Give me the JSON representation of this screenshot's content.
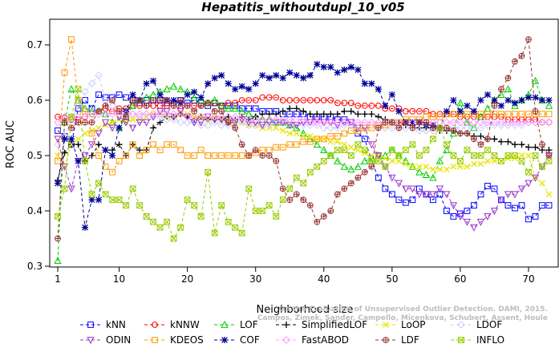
{
  "chart_data": {
    "type": "line",
    "title": "Hepatitis_withoutdupl_10_v05",
    "xlabel": "Neighborhood size",
    "ylabel": "ROC AUC",
    "xlim": [
      0,
      73
    ],
    "ylim": [
      0.3,
      0.75
    ],
    "xticks": [
      1,
      10,
      20,
      30,
      40,
      50,
      60,
      70
    ],
    "yticks": [
      0.3,
      0.4,
      0.5,
      0.6,
      0.7
    ],
    "grid": false,
    "legend_position": "bottom",
    "x": [
      1,
      2,
      3,
      4,
      5,
      6,
      7,
      8,
      9,
      10,
      11,
      12,
      13,
      14,
      15,
      16,
      17,
      18,
      19,
      20,
      21,
      22,
      23,
      24,
      25,
      26,
      27,
      28,
      29,
      30,
      31,
      32,
      33,
      34,
      35,
      36,
      37,
      38,
      39,
      40,
      41,
      42,
      43,
      44,
      45,
      46,
      47,
      48,
      49,
      50,
      51,
      52,
      53,
      54,
      55,
      56,
      57,
      58,
      59,
      60,
      61,
      62,
      63,
      64,
      65,
      66,
      67,
      68,
      69,
      70,
      71,
      72,
      73
    ],
    "series": [
      {
        "name": "kNN",
        "color": "#0000ff",
        "marker": "square",
        "values": [
          0.545,
          0.535,
          0.52,
          0.585,
          0.6,
          0.585,
          0.61,
          0.605,
          0.605,
          0.61,
          0.605,
          0.6,
          0.595,
          0.6,
          0.6,
          0.6,
          0.595,
          0.595,
          0.6,
          0.595,
          0.6,
          0.595,
          0.59,
          0.595,
          0.59,
          0.59,
          0.59,
          0.585,
          0.585,
          0.585,
          0.58,
          0.58,
          0.58,
          0.575,
          0.575,
          0.575,
          0.575,
          0.57,
          0.57,
          0.57,
          0.57,
          0.565,
          0.565,
          0.56,
          0.54,
          0.53,
          0.49,
          0.46,
          0.44,
          0.43,
          0.42,
          0.415,
          0.42,
          0.44,
          0.43,
          0.42,
          0.43,
          0.4,
          0.39,
          0.395,
          0.4,
          0.41,
          0.43,
          0.445,
          0.44,
          0.42,
          0.41,
          0.405,
          0.41,
          0.385,
          0.39,
          0.41,
          0.41
        ]
      },
      {
        "name": "kNNW",
        "color": "#ff0000",
        "marker": "circle",
        "values": [
          0.57,
          0.568,
          0.565,
          0.565,
          0.57,
          0.575,
          0.58,
          0.585,
          0.58,
          0.585,
          0.585,
          0.59,
          0.59,
          0.59,
          0.59,
          0.59,
          0.59,
          0.59,
          0.585,
          0.59,
          0.59,
          0.59,
          0.595,
          0.595,
          0.59,
          0.595,
          0.595,
          0.6,
          0.6,
          0.6,
          0.605,
          0.605,
          0.605,
          0.6,
          0.6,
          0.6,
          0.6,
          0.6,
          0.6,
          0.6,
          0.6,
          0.595,
          0.595,
          0.595,
          0.59,
          0.59,
          0.59,
          0.59,
          0.585,
          0.585,
          0.585,
          0.58,
          0.58,
          0.58,
          0.58,
          0.575,
          0.575,
          0.575,
          0.575,
          0.57,
          0.57,
          0.57,
          0.57,
          0.57,
          0.57,
          0.57,
          0.565,
          0.565,
          0.565,
          0.565,
          0.565,
          0.56,
          0.56
        ]
      },
      {
        "name": "LOF",
        "color": "#00cc00",
        "marker": "triangle-up",
        "values": [
          0.31,
          0.56,
          0.62,
          0.6,
          0.585,
          0.58,
          0.58,
          0.575,
          0.56,
          0.55,
          0.57,
          0.59,
          0.6,
          0.605,
          0.61,
          0.615,
          0.62,
          0.625,
          0.62,
          0.615,
          0.605,
          0.6,
          0.595,
          0.6,
          0.59,
          0.585,
          0.585,
          0.58,
          0.575,
          0.57,
          0.565,
          0.565,
          0.56,
          0.56,
          0.555,
          0.55,
          0.54,
          0.53,
          0.52,
          0.51,
          0.5,
          0.49,
          0.48,
          0.475,
          0.48,
          0.49,
          0.495,
          0.5,
          0.5,
          0.51,
          0.5,
          0.49,
          0.48,
          0.47,
          0.465,
          0.46,
          0.49,
          0.51,
          0.54,
          0.595,
          0.56,
          0.55,
          0.57,
          0.585,
          0.6,
          0.61,
          0.62,
          0.59,
          0.6,
          0.61,
          0.635,
          0.6,
          0.59
        ]
      },
      {
        "name": "SimplifiedLOF",
        "color": "#000000",
        "marker": "plus",
        "values": [
          0.455,
          0.505,
          0.52,
          0.52,
          0.49,
          0.5,
          0.52,
          0.51,
          0.51,
          0.52,
          0.5,
          0.52,
          0.51,
          0.51,
          0.55,
          0.56,
          0.57,
          0.57,
          0.575,
          0.57,
          0.565,
          0.57,
          0.565,
          0.565,
          0.565,
          0.57,
          0.565,
          0.57,
          0.565,
          0.57,
          0.575,
          0.575,
          0.575,
          0.58,
          0.585,
          0.585,
          0.58,
          0.575,
          0.575,
          0.575,
          0.575,
          0.575,
          0.58,
          0.58,
          0.575,
          0.575,
          0.575,
          0.57,
          0.565,
          0.56,
          0.56,
          0.555,
          0.555,
          0.55,
          0.55,
          0.55,
          0.545,
          0.545,
          0.545,
          0.54,
          0.54,
          0.535,
          0.535,
          0.53,
          0.53,
          0.525,
          0.525,
          0.52,
          0.52,
          0.515,
          0.515,
          0.51,
          0.51
        ]
      },
      {
        "name": "LoOP",
        "color": "#e6e600",
        "marker": "x",
        "values": [
          0.5,
          0.48,
          0.52,
          0.53,
          0.54,
          0.545,
          0.55,
          0.555,
          0.56,
          0.565,
          0.56,
          0.565,
          0.565,
          0.57,
          0.575,
          0.575,
          0.57,
          0.57,
          0.575,
          0.575,
          0.57,
          0.57,
          0.565,
          0.57,
          0.565,
          0.565,
          0.56,
          0.56,
          0.555,
          0.555,
          0.55,
          0.55,
          0.55,
          0.545,
          0.54,
          0.54,
          0.535,
          0.535,
          0.53,
          0.53,
          0.525,
          0.525,
          0.52,
          0.515,
          0.51,
          0.505,
          0.5,
          0.5,
          0.495,
          0.49,
          0.49,
          0.485,
          0.48,
          0.48,
          0.48,
          0.475,
          0.475,
          0.475,
          0.48,
          0.48,
          0.48,
          0.485,
          0.485,
          0.49,
          0.49,
          0.49,
          0.495,
          0.495,
          0.5,
          0.5,
          0.46,
          0.45,
          0.43
        ]
      },
      {
        "name": "LDOF",
        "color": "#ccccff",
        "marker": "diamond",
        "values": [
          0.52,
          0.535,
          0.56,
          0.59,
          0.615,
          0.63,
          0.645,
          0.6,
          0.59,
          0.58,
          0.58,
          0.575,
          0.57,
          0.575,
          0.57,
          0.57,
          0.565,
          0.565,
          0.56,
          0.56,
          0.56,
          0.555,
          0.555,
          0.56,
          0.555,
          0.555,
          0.56,
          0.56,
          0.555,
          0.555,
          0.555,
          0.555,
          0.56,
          0.56,
          0.56,
          0.555,
          0.555,
          0.555,
          0.555,
          0.55,
          0.55,
          0.55,
          0.555,
          0.555,
          0.555,
          0.555,
          0.555,
          0.555,
          0.55,
          0.55,
          0.55,
          0.55,
          0.55,
          0.545,
          0.545,
          0.545,
          0.55,
          0.55,
          0.55,
          0.55,
          0.55,
          0.55,
          0.55,
          0.555,
          0.555,
          0.555,
          0.555,
          0.555,
          0.555,
          0.56,
          0.56,
          0.56,
          0.56
        ]
      },
      {
        "name": "ODIN",
        "color": "#9933cc",
        "marker": "triangle-down",
        "values": [
          0.53,
          0.48,
          0.44,
          0.49,
          0.5,
          0.52,
          0.54,
          0.56,
          0.55,
          0.57,
          0.56,
          0.55,
          0.56,
          0.56,
          0.57,
          0.58,
          0.58,
          0.57,
          0.58,
          0.57,
          0.56,
          0.56,
          0.57,
          0.565,
          0.565,
          0.56,
          0.56,
          0.565,
          0.56,
          0.56,
          0.555,
          0.56,
          0.56,
          0.56,
          0.555,
          0.555,
          0.56,
          0.56,
          0.565,
          0.56,
          0.56,
          0.555,
          0.56,
          0.56,
          0.55,
          0.55,
          0.52,
          0.5,
          0.48,
          0.46,
          0.45,
          0.44,
          0.44,
          0.43,
          0.43,
          0.43,
          0.44,
          0.43,
          0.41,
          0.39,
          0.38,
          0.37,
          0.38,
          0.39,
          0.4,
          0.42,
          0.43,
          0.43,
          0.44,
          0.45,
          0.46,
          0.48,
          0.5
        ]
      },
      {
        "name": "KDEOS",
        "color": "#ff9900",
        "marker": "square",
        "values": [
          0.49,
          0.65,
          0.71,
          0.6,
          0.58,
          0.54,
          0.5,
          0.48,
          0.47,
          0.49,
          0.5,
          0.52,
          0.5,
          0.51,
          0.52,
          0.51,
          0.52,
          0.52,
          0.51,
          0.5,
          0.5,
          0.51,
          0.5,
          0.5,
          0.5,
          0.5,
          0.5,
          0.5,
          0.5,
          0.505,
          0.51,
          0.51,
          0.515,
          0.515,
          0.52,
          0.52,
          0.525,
          0.525,
          0.53,
          0.53,
          0.535,
          0.535,
          0.54,
          0.545,
          0.545,
          0.55,
          0.55,
          0.555,
          0.555,
          0.56,
          0.56,
          0.565,
          0.565,
          0.565,
          0.57,
          0.57,
          0.57,
          0.575,
          0.575,
          0.575,
          0.575,
          0.575,
          0.575,
          0.575,
          0.575,
          0.575,
          0.575,
          0.575,
          0.575,
          0.575,
          0.575,
          0.575,
          0.575
        ]
      },
      {
        "name": "COF",
        "color": "#000099",
        "marker": "asterisk",
        "values": [
          0.45,
          0.53,
          0.53,
          0.49,
          0.37,
          0.42,
          0.42,
          0.51,
          0.5,
          0.55,
          0.58,
          0.61,
          0.6,
          0.63,
          0.635,
          0.61,
          0.6,
          0.6,
          0.595,
          0.61,
          0.615,
          0.605,
          0.63,
          0.64,
          0.645,
          0.63,
          0.62,
          0.625,
          0.62,
          0.63,
          0.645,
          0.64,
          0.645,
          0.64,
          0.65,
          0.645,
          0.64,
          0.645,
          0.665,
          0.66,
          0.66,
          0.65,
          0.655,
          0.66,
          0.655,
          0.63,
          0.63,
          0.62,
          0.59,
          0.61,
          0.58,
          0.56,
          0.56,
          0.56,
          0.555,
          0.555,
          0.55,
          0.58,
          0.6,
          0.58,
          0.59,
          0.58,
          0.6,
          0.61,
          0.6,
          0.59,
          0.6,
          0.595,
          0.6,
          0.605,
          0.605,
          0.6,
          0.6
        ]
      },
      {
        "name": "FastABOD",
        "color": "#ff99ff",
        "marker": "diamond",
        "values": [
          0.56,
          0.57,
          0.57,
          0.57,
          0.57,
          0.575,
          0.575,
          0.575,
          0.575,
          0.575,
          0.575,
          0.575,
          0.575,
          0.575,
          0.575,
          0.575,
          0.575,
          0.575,
          0.575,
          0.57,
          0.57,
          0.57,
          0.57,
          0.57,
          0.57,
          0.57,
          0.57,
          0.57,
          0.565,
          0.565,
          0.565,
          0.565,
          0.565,
          0.565,
          0.565,
          0.565,
          0.565,
          0.56,
          0.56,
          0.56,
          0.56,
          0.56,
          0.56,
          0.56,
          0.56,
          0.56,
          0.56,
          0.56,
          0.56,
          0.56,
          0.56,
          0.56,
          0.56,
          0.56,
          0.56,
          0.56,
          0.56,
          0.56,
          0.56,
          0.56,
          0.56,
          0.56,
          0.56,
          0.56,
          0.56,
          0.56,
          0.56,
          0.56,
          0.56,
          0.56,
          0.56,
          0.56,
          0.56
        ]
      },
      {
        "name": "LDF",
        "color": "#993333",
        "marker": "circle-plus",
        "values": [
          0.35,
          0.56,
          0.55,
          0.56,
          0.56,
          0.56,
          0.58,
          0.59,
          0.6,
          0.58,
          0.57,
          0.6,
          0.6,
          0.59,
          0.6,
          0.6,
          0.6,
          0.59,
          0.6,
          0.59,
          0.58,
          0.59,
          0.595,
          0.58,
          0.58,
          0.56,
          0.55,
          0.52,
          0.5,
          0.51,
          0.5,
          0.5,
          0.49,
          0.44,
          0.42,
          0.43,
          0.42,
          0.41,
          0.38,
          0.39,
          0.4,
          0.43,
          0.44,
          0.45,
          0.46,
          0.47,
          0.48,
          0.55,
          0.56,
          0.56,
          0.55,
          0.56,
          0.55,
          0.56,
          0.56,
          0.55,
          0.55,
          0.55,
          0.545,
          0.54,
          0.54,
          0.53,
          0.52,
          0.53,
          0.59,
          0.62,
          0.64,
          0.67,
          0.68,
          0.71,
          0.58,
          0.52,
          0.5
        ]
      },
      {
        "name": "INFLO",
        "color": "#99cc00",
        "marker": "x-square",
        "values": [
          0.39,
          0.44,
          0.57,
          0.62,
          0.49,
          0.43,
          0.45,
          0.43,
          0.42,
          0.42,
          0.41,
          0.44,
          0.41,
          0.39,
          0.38,
          0.37,
          0.38,
          0.35,
          0.37,
          0.42,
          0.41,
          0.39,
          0.47,
          0.36,
          0.41,
          0.38,
          0.37,
          0.36,
          0.44,
          0.4,
          0.4,
          0.41,
          0.39,
          0.42,
          0.44,
          0.46,
          0.45,
          0.47,
          0.48,
          0.49,
          0.5,
          0.51,
          0.51,
          0.5,
          0.52,
          0.51,
          0.49,
          0.49,
          0.48,
          0.51,
          0.5,
          0.51,
          0.52,
          0.5,
          0.51,
          0.53,
          0.55,
          0.52,
          0.5,
          0.49,
          0.51,
          0.5,
          0.5,
          0.51,
          0.5,
          0.49,
          0.5,
          0.5,
          0.49,
          0.47,
          0.5,
          0.48,
          0.49
        ]
      }
    ],
    "legend_layout": [
      [
        "kNN",
        "kNNW",
        "LOF",
        "SimplifiedLOF",
        "LoOP",
        "LDOF"
      ],
      [
        "ODIN",
        "KDEOS",
        "COF",
        "FastABOD",
        "LDF",
        "INFLO"
      ]
    ],
    "annotation": {
      "line1": "Campos, Zimek, Sander, Campello, Micenkova, Schubert, Assent, Houle",
      "line2": "On the Evaluation of Unsupervised Outlier Detection. DAMI, 2015."
    }
  }
}
